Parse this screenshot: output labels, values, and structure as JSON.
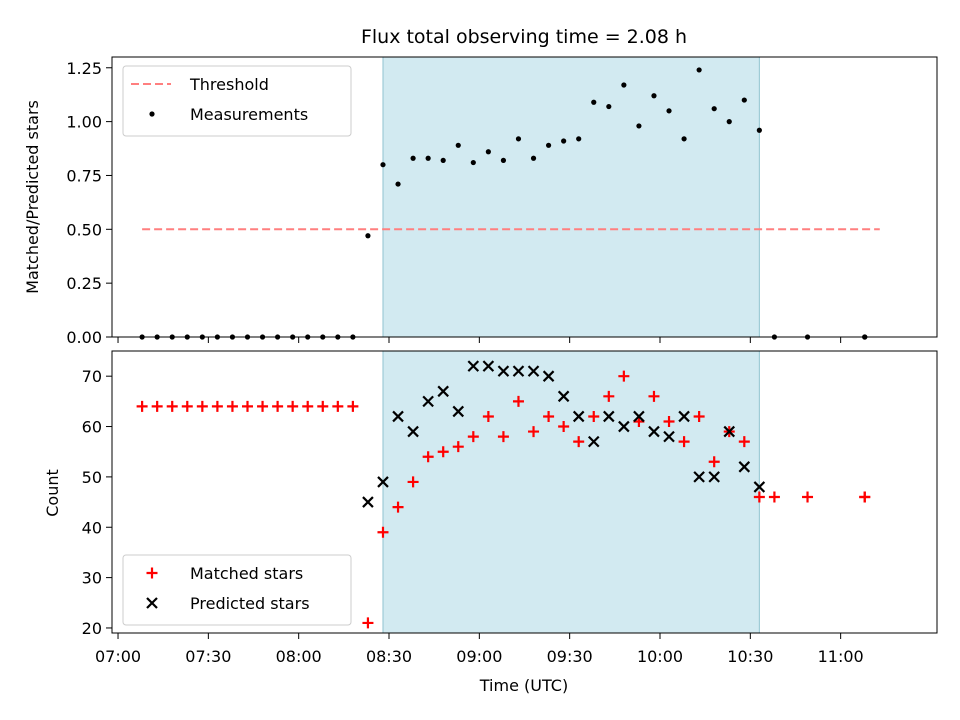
{
  "chart_data": {
    "title": "Flux total observing time = 2.08 h",
    "xlabel": "Time (UTC)",
    "x_unit": "minutes after 07:00 UTC",
    "xlim": [
      "06:58",
      "11:32"
    ],
    "x_ticks": [
      {
        "t": "07:00",
        "label": "07:00"
      },
      {
        "t": "07:30",
        "label": "07:30"
      },
      {
        "t": "08:00",
        "label": "08:00"
      },
      {
        "t": "08:30",
        "label": "08:30"
      },
      {
        "t": "09:00",
        "label": "09:00"
      },
      {
        "t": "09:30",
        "label": "09:30"
      },
      {
        "t": "10:00",
        "label": "10:00"
      },
      {
        "t": "10:30",
        "label": "10:30"
      },
      {
        "t": "11:00",
        "label": "11:00"
      }
    ],
    "shaded_interval": {
      "start": "08:28",
      "end": "10:33",
      "color": "#add8e6"
    },
    "panels": [
      {
        "type": "scatter",
        "ylabel": "Matched/Predicted stars",
        "ylim": [
          0.0,
          1.3
        ],
        "y_ticks": [
          "0.00",
          "0.25",
          "0.50",
          "0.75",
          "1.00",
          "1.25"
        ],
        "legend_position": "top-left",
        "series": [
          {
            "name": "Threshold",
            "kind": "hline",
            "value": 0.5,
            "x_range": [
              "07:08",
              "11:13"
            ],
            "color": "#ff7f7f",
            "style": "dashed"
          },
          {
            "name": "Measurements",
            "kind": "scatter",
            "marker": "dot",
            "color": "#000000",
            "points": [
              {
                "t": "07:08",
                "y": 0.0
              },
              {
                "t": "07:13",
                "y": 0.0
              },
              {
                "t": "07:18",
                "y": 0.0
              },
              {
                "t": "07:23",
                "y": 0.0
              },
              {
                "t": "07:28",
                "y": 0.0
              },
              {
                "t": "07:33",
                "y": 0.0
              },
              {
                "t": "07:38",
                "y": 0.0
              },
              {
                "t": "07:43",
                "y": 0.0
              },
              {
                "t": "07:48",
                "y": 0.0
              },
              {
                "t": "07:53",
                "y": 0.0
              },
              {
                "t": "07:58",
                "y": 0.0
              },
              {
                "t": "08:03",
                "y": 0.0
              },
              {
                "t": "08:08",
                "y": 0.0
              },
              {
                "t": "08:13",
                "y": 0.0
              },
              {
                "t": "08:18",
                "y": 0.0
              },
              {
                "t": "08:23",
                "y": 0.47
              },
              {
                "t": "08:28",
                "y": 0.8
              },
              {
                "t": "08:33",
                "y": 0.71
              },
              {
                "t": "08:38",
                "y": 0.83
              },
              {
                "t": "08:43",
                "y": 0.83
              },
              {
                "t": "08:48",
                "y": 0.82
              },
              {
                "t": "08:53",
                "y": 0.89
              },
              {
                "t": "08:58",
                "y": 0.81
              },
              {
                "t": "09:03",
                "y": 0.86
              },
              {
                "t": "09:08",
                "y": 0.82
              },
              {
                "t": "09:13",
                "y": 0.92
              },
              {
                "t": "09:18",
                "y": 0.83
              },
              {
                "t": "09:23",
                "y": 0.89
              },
              {
                "t": "09:28",
                "y": 0.91
              },
              {
                "t": "09:33",
                "y": 0.92
              },
              {
                "t": "09:38",
                "y": 1.09
              },
              {
                "t": "09:43",
                "y": 1.07
              },
              {
                "t": "09:48",
                "y": 1.17
              },
              {
                "t": "09:53",
                "y": 0.98
              },
              {
                "t": "09:58",
                "y": 1.12
              },
              {
                "t": "10:03",
                "y": 1.05
              },
              {
                "t": "10:08",
                "y": 0.92
              },
              {
                "t": "10:13",
                "y": 1.24
              },
              {
                "t": "10:18",
                "y": 1.06
              },
              {
                "t": "10:23",
                "y": 1.0
              },
              {
                "t": "10:28",
                "y": 1.1
              },
              {
                "t": "10:33",
                "y": 0.96
              },
              {
                "t": "10:38",
                "y": 0.0
              },
              {
                "t": "10:49",
                "y": 0.0
              },
              {
                "t": "11:08",
                "y": 0.0
              },
              {
                "t": "11:08",
                "y": 0.0
              }
            ]
          }
        ]
      },
      {
        "type": "scatter",
        "ylabel": "Count",
        "ylim": [
          19,
          75
        ],
        "y_ticks": [
          "20",
          "30",
          "40",
          "50",
          "60",
          "70"
        ],
        "legend_position": "bottom-left",
        "series": [
          {
            "name": "Matched stars",
            "kind": "scatter",
            "marker": "plus",
            "color": "#ff0000",
            "points": [
              {
                "t": "07:08",
                "y": 64
              },
              {
                "t": "07:13",
                "y": 64
              },
              {
                "t": "07:18",
                "y": 64
              },
              {
                "t": "07:23",
                "y": 64
              },
              {
                "t": "07:28",
                "y": 64
              },
              {
                "t": "07:33",
                "y": 64
              },
              {
                "t": "07:38",
                "y": 64
              },
              {
                "t": "07:43",
                "y": 64
              },
              {
                "t": "07:48",
                "y": 64
              },
              {
                "t": "07:53",
                "y": 64
              },
              {
                "t": "07:58",
                "y": 64
              },
              {
                "t": "08:03",
                "y": 64
              },
              {
                "t": "08:08",
                "y": 64
              },
              {
                "t": "08:13",
                "y": 64
              },
              {
                "t": "08:18",
                "y": 64
              },
              {
                "t": "08:23",
                "y": 21
              },
              {
                "t": "08:28",
                "y": 39
              },
              {
                "t": "08:33",
                "y": 44
              },
              {
                "t": "08:38",
                "y": 49
              },
              {
                "t": "08:43",
                "y": 54
              },
              {
                "t": "08:48",
                "y": 55
              },
              {
                "t": "08:53",
                "y": 56
              },
              {
                "t": "08:58",
                "y": 58
              },
              {
                "t": "09:03",
                "y": 62
              },
              {
                "t": "09:08",
                "y": 58
              },
              {
                "t": "09:13",
                "y": 65
              },
              {
                "t": "09:18",
                "y": 59
              },
              {
                "t": "09:23",
                "y": 62
              },
              {
                "t": "09:28",
                "y": 60
              },
              {
                "t": "09:33",
                "y": 57
              },
              {
                "t": "09:38",
                "y": 62
              },
              {
                "t": "09:43",
                "y": 66
              },
              {
                "t": "09:48",
                "y": 70
              },
              {
                "t": "09:53",
                "y": 61
              },
              {
                "t": "09:58",
                "y": 66
              },
              {
                "t": "10:03",
                "y": 61
              },
              {
                "t": "10:08",
                "y": 57
              },
              {
                "t": "10:13",
                "y": 62
              },
              {
                "t": "10:18",
                "y": 53
              },
              {
                "t": "10:23",
                "y": 59
              },
              {
                "t": "10:28",
                "y": 57
              },
              {
                "t": "10:33",
                "y": 46
              },
              {
                "t": "10:38",
                "y": 46
              },
              {
                "t": "10:49",
                "y": 46
              },
              {
                "t": "11:08",
                "y": 46
              },
              {
                "t": "11:08",
                "y": 46
              }
            ]
          },
          {
            "name": "Predicted stars",
            "kind": "scatter",
            "marker": "x",
            "color": "#000000",
            "points": [
              {
                "t": "08:23",
                "y": 45
              },
              {
                "t": "08:28",
                "y": 49
              },
              {
                "t": "08:33",
                "y": 62
              },
              {
                "t": "08:38",
                "y": 59
              },
              {
                "t": "08:43",
                "y": 65
              },
              {
                "t": "08:48",
                "y": 67
              },
              {
                "t": "08:53",
                "y": 63
              },
              {
                "t": "08:58",
                "y": 72
              },
              {
                "t": "09:03",
                "y": 72
              },
              {
                "t": "09:08",
                "y": 71
              },
              {
                "t": "09:13",
                "y": 71
              },
              {
                "t": "09:18",
                "y": 71
              },
              {
                "t": "09:23",
                "y": 70
              },
              {
                "t": "09:28",
                "y": 66
              },
              {
                "t": "09:33",
                "y": 62
              },
              {
                "t": "09:38",
                "y": 57
              },
              {
                "t": "09:43",
                "y": 62
              },
              {
                "t": "09:48",
                "y": 60
              },
              {
                "t": "09:53",
                "y": 62
              },
              {
                "t": "09:58",
                "y": 59
              },
              {
                "t": "10:03",
                "y": 58
              },
              {
                "t": "10:08",
                "y": 62
              },
              {
                "t": "10:13",
                "y": 50
              },
              {
                "t": "10:18",
                "y": 50
              },
              {
                "t": "10:23",
                "y": 59
              },
              {
                "t": "10:28",
                "y": 52
              },
              {
                "t": "10:33",
                "y": 48
              }
            ]
          }
        ]
      }
    ]
  }
}
